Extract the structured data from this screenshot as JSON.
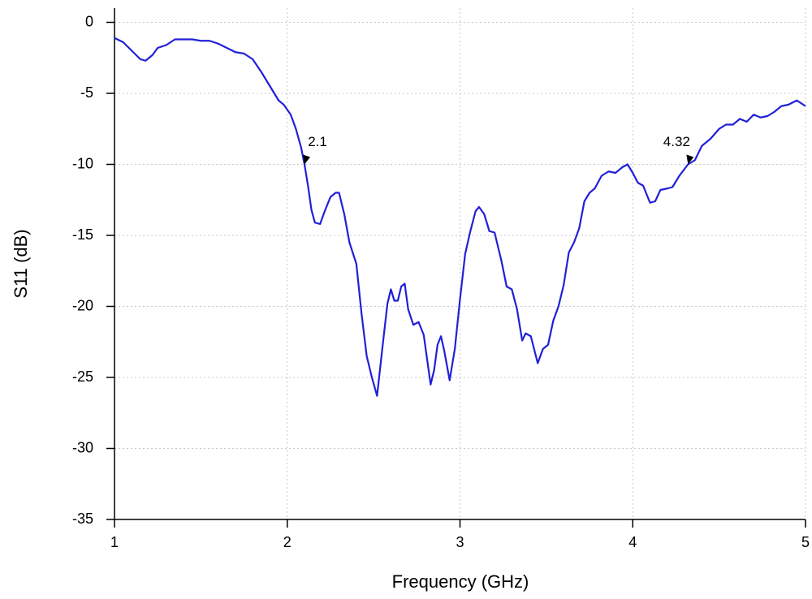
{
  "chart_data": {
    "type": "line",
    "x_label": "Frequency (GHz)",
    "y_label": "S11 (dB)",
    "xlim": [
      1,
      5
    ],
    "ylim": [
      -35,
      1
    ],
    "xticks": [
      1,
      2,
      3,
      4,
      5
    ],
    "yticks": [
      0,
      -5,
      -10,
      -15,
      -20,
      -25,
      -30,
      -35
    ],
    "grid": true,
    "x": [
      1.0,
      1.05,
      1.1,
      1.15,
      1.18,
      1.22,
      1.25,
      1.3,
      1.35,
      1.4,
      1.45,
      1.5,
      1.55,
      1.6,
      1.65,
      1.7,
      1.75,
      1.8,
      1.85,
      1.9,
      1.95,
      1.98,
      2.02,
      2.05,
      2.08,
      2.1,
      2.12,
      2.14,
      2.16,
      2.19,
      2.22,
      2.25,
      2.28,
      2.3,
      2.33,
      2.36,
      2.4,
      2.43,
      2.46,
      2.49,
      2.52,
      2.55,
      2.58,
      2.6,
      2.62,
      2.64,
      2.66,
      2.68,
      2.7,
      2.73,
      2.76,
      2.79,
      2.83,
      2.85,
      2.87,
      2.89,
      2.91,
      2.94,
      2.97,
      3.0,
      3.03,
      3.06,
      3.09,
      3.11,
      3.14,
      3.17,
      3.2,
      3.24,
      3.27,
      3.3,
      3.33,
      3.36,
      3.38,
      3.41,
      3.45,
      3.48,
      3.51,
      3.54,
      3.57,
      3.6,
      3.63,
      3.66,
      3.69,
      3.72,
      3.75,
      3.78,
      3.82,
      3.86,
      3.9,
      3.94,
      3.97,
      4.0,
      4.03,
      4.06,
      4.1,
      4.13,
      4.16,
      4.2,
      4.23,
      4.27,
      4.32,
      4.36,
      4.4,
      4.45,
      4.5,
      4.54,
      4.58,
      4.62,
      4.66,
      4.7,
      4.74,
      4.78,
      4.82,
      4.86,
      4.9,
      4.95,
      5.0
    ],
    "series": [
      {
        "color": "#2020d8",
        "values": [
          -1.1,
          -1.4,
          -2.0,
          -2.6,
          -2.7,
          -2.3,
          -1.8,
          -1.6,
          -1.2,
          -1.2,
          -1.2,
          -1.3,
          -1.3,
          -1.5,
          -1.8,
          -2.1,
          -2.2,
          -2.6,
          -3.5,
          -4.5,
          -5.5,
          -5.8,
          -6.5,
          -7.5,
          -8.8,
          -10.0,
          -11.5,
          -13.2,
          -14.1,
          -14.2,
          -13.2,
          -12.3,
          -12.0,
          -12.0,
          -13.5,
          -15.5,
          -17.0,
          -20.5,
          -23.5,
          -25.0,
          -26.3,
          -23.0,
          -19.8,
          -18.8,
          -19.6,
          -19.6,
          -18.6,
          -18.4,
          -20.2,
          -21.3,
          -21.1,
          -22.0,
          -25.5,
          -24.5,
          -22.7,
          -22.1,
          -23.2,
          -25.2,
          -23.0,
          -19.5,
          -16.3,
          -14.7,
          -13.3,
          -13.0,
          -13.5,
          -14.7,
          -14.8,
          -16.8,
          -18.6,
          -18.8,
          -20.2,
          -22.4,
          -21.9,
          -22.1,
          -24.0,
          -23.0,
          -22.7,
          -21.0,
          -20.0,
          -18.5,
          -16.2,
          -15.5,
          -14.5,
          -12.6,
          -12.0,
          -11.7,
          -10.8,
          -10.5,
          -10.6,
          -10.2,
          -10.0,
          -10.6,
          -11.3,
          -11.5,
          -12.7,
          -12.6,
          -11.8,
          -11.7,
          -11.6,
          -10.8,
          -10.0,
          -9.7,
          -8.7,
          -8.2,
          -7.5,
          -7.2,
          -7.2,
          -6.8,
          -7.0,
          -6.5,
          -6.7,
          -6.6,
          -6.3,
          -5.9,
          -5.8,
          -5.5,
          -5.9
        ]
      }
    ],
    "annotations": [
      {
        "label": "2.1",
        "x": 2.1,
        "y": -10
      },
      {
        "label": "4.32",
        "x": 4.32,
        "y": -10
      }
    ]
  }
}
